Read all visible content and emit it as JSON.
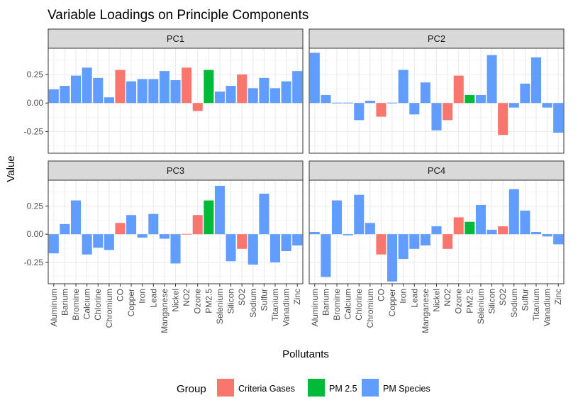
{
  "chart_data": {
    "type": "bar",
    "title": "Variable Loadings on Principle Components",
    "xlabel": "Pollutants",
    "ylabel": "Value",
    "ylim": [
      -0.44,
      0.48
    ],
    "yticks": [
      -0.25,
      0.0,
      0.25
    ],
    "ytick_labels": [
      "-0.25",
      "0.00",
      "0.25"
    ],
    "grid": true,
    "facets": [
      "PC1",
      "PC2",
      "PC3",
      "PC4"
    ],
    "facet_layout": "2x2",
    "categories": [
      "Aluminum",
      "Barium",
      "Bromine",
      "Calcium",
      "Chlorine",
      "Chromium",
      "CO",
      "Copper",
      "Iron",
      "Lead",
      "Manganese",
      "Nickel",
      "NO2",
      "Ozone",
      "PM2.5",
      "Selenium",
      "Silicon",
      "SO2",
      "Sodium",
      "Sulfur",
      "Titanium",
      "Vanadium",
      "Zinc"
    ],
    "category_groups": [
      "PM Species",
      "PM Species",
      "PM Species",
      "PM Species",
      "PM Species",
      "PM Species",
      "Criteria Gases",
      "PM Species",
      "PM Species",
      "PM Species",
      "PM Species",
      "PM Species",
      "Criteria Gases",
      "Criteria Gases",
      "PM 2.5",
      "PM Species",
      "PM Species",
      "Criteria Gases",
      "PM Species",
      "PM Species",
      "PM Species",
      "PM Species",
      "PM Species"
    ],
    "series": [
      {
        "name": "PC1",
        "values": [
          0.12,
          0.15,
          0.24,
          0.31,
          0.22,
          0.05,
          0.29,
          0.19,
          0.21,
          0.21,
          0.28,
          0.2,
          0.31,
          -0.07,
          0.29,
          0.1,
          0.15,
          0.25,
          0.13,
          0.22,
          0.13,
          0.19,
          0.28
        ]
      },
      {
        "name": "PC2",
        "values": [
          0.44,
          0.07,
          0.0,
          0.0,
          -0.15,
          0.02,
          -0.12,
          0.0,
          0.29,
          -0.1,
          0.18,
          -0.24,
          -0.15,
          0.24,
          0.07,
          0.07,
          0.42,
          -0.28,
          -0.04,
          0.17,
          0.4,
          -0.04,
          -0.26
        ]
      },
      {
        "name": "PC3",
        "values": [
          -0.17,
          0.09,
          0.3,
          -0.18,
          -0.12,
          -0.14,
          0.1,
          0.17,
          -0.03,
          0.18,
          -0.04,
          -0.26,
          0.0,
          0.17,
          0.3,
          0.43,
          -0.24,
          -0.13,
          -0.27,
          0.36,
          -0.25,
          -0.15,
          -0.1
        ]
      },
      {
        "name": "PC4",
        "values": [
          0.02,
          -0.38,
          0.3,
          -0.01,
          0.35,
          0.1,
          -0.18,
          -0.42,
          -0.22,
          -0.13,
          -0.1,
          0.07,
          -0.13,
          0.15,
          0.11,
          0.26,
          0.04,
          0.07,
          0.4,
          0.21,
          0.02,
          -0.02,
          -0.09
        ]
      }
    ],
    "legend": {
      "title": "Group",
      "position": "bottom",
      "entries": [
        {
          "label": "Criteria Gases",
          "color": "#F8766D"
        },
        {
          "label": "PM 2.5",
          "color": "#00BA38"
        },
        {
          "label": "PM Species",
          "color": "#619CFF"
        }
      ]
    }
  }
}
